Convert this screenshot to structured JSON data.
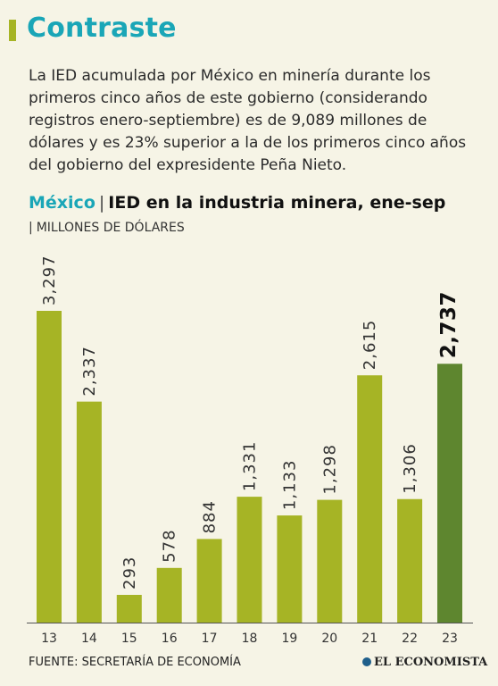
{
  "header": {
    "title": "Contraste",
    "intro": "La IED acumulada por México en minería durante los primeros cinco años de este gobierno (considerando registros enero-septiembre) es de 9,089 millones de dólares y es 23% superior a la de los primeros cinco años del gobierno del expresidente Peña Nieto."
  },
  "chart_heading": {
    "country": "México",
    "separator": "|",
    "title": "IED en la industria minera, ene-sep",
    "units_separator": "|",
    "units": "MILLONES DE DÓLARES"
  },
  "footer": {
    "source": "FUENTE: SECRETARÍA DE ECONOMÍA",
    "brand": "EL ECONOMISTA"
  },
  "colors": {
    "title": "#1aa6b7",
    "bar": "#a6b425",
    "bar_highlight": "#5e862f",
    "accent": "#a6b425",
    "background": "#f6f4e6"
  },
  "chart_data": {
    "type": "bar",
    "title": "IED en la industria minera, ene-sep",
    "ylabel": "MILLONES DE DÓLARES",
    "categories": [
      "13",
      "14",
      "15",
      "16",
      "17",
      "18",
      "19",
      "20",
      "21",
      "22",
      "23"
    ],
    "values": [
      3297,
      2337,
      293,
      578,
      884,
      1331,
      1133,
      1298,
      2615,
      1306,
      2737
    ],
    "labels": [
      "3,297",
      "2,337",
      "293",
      "578",
      "884",
      "1,331",
      "1,133",
      "1,298",
      "2,615",
      "1,306",
      "2,737"
    ],
    "highlight_category": "23",
    "ylim": [
      0,
      3297
    ],
    "grid": false,
    "legend": "none"
  }
}
